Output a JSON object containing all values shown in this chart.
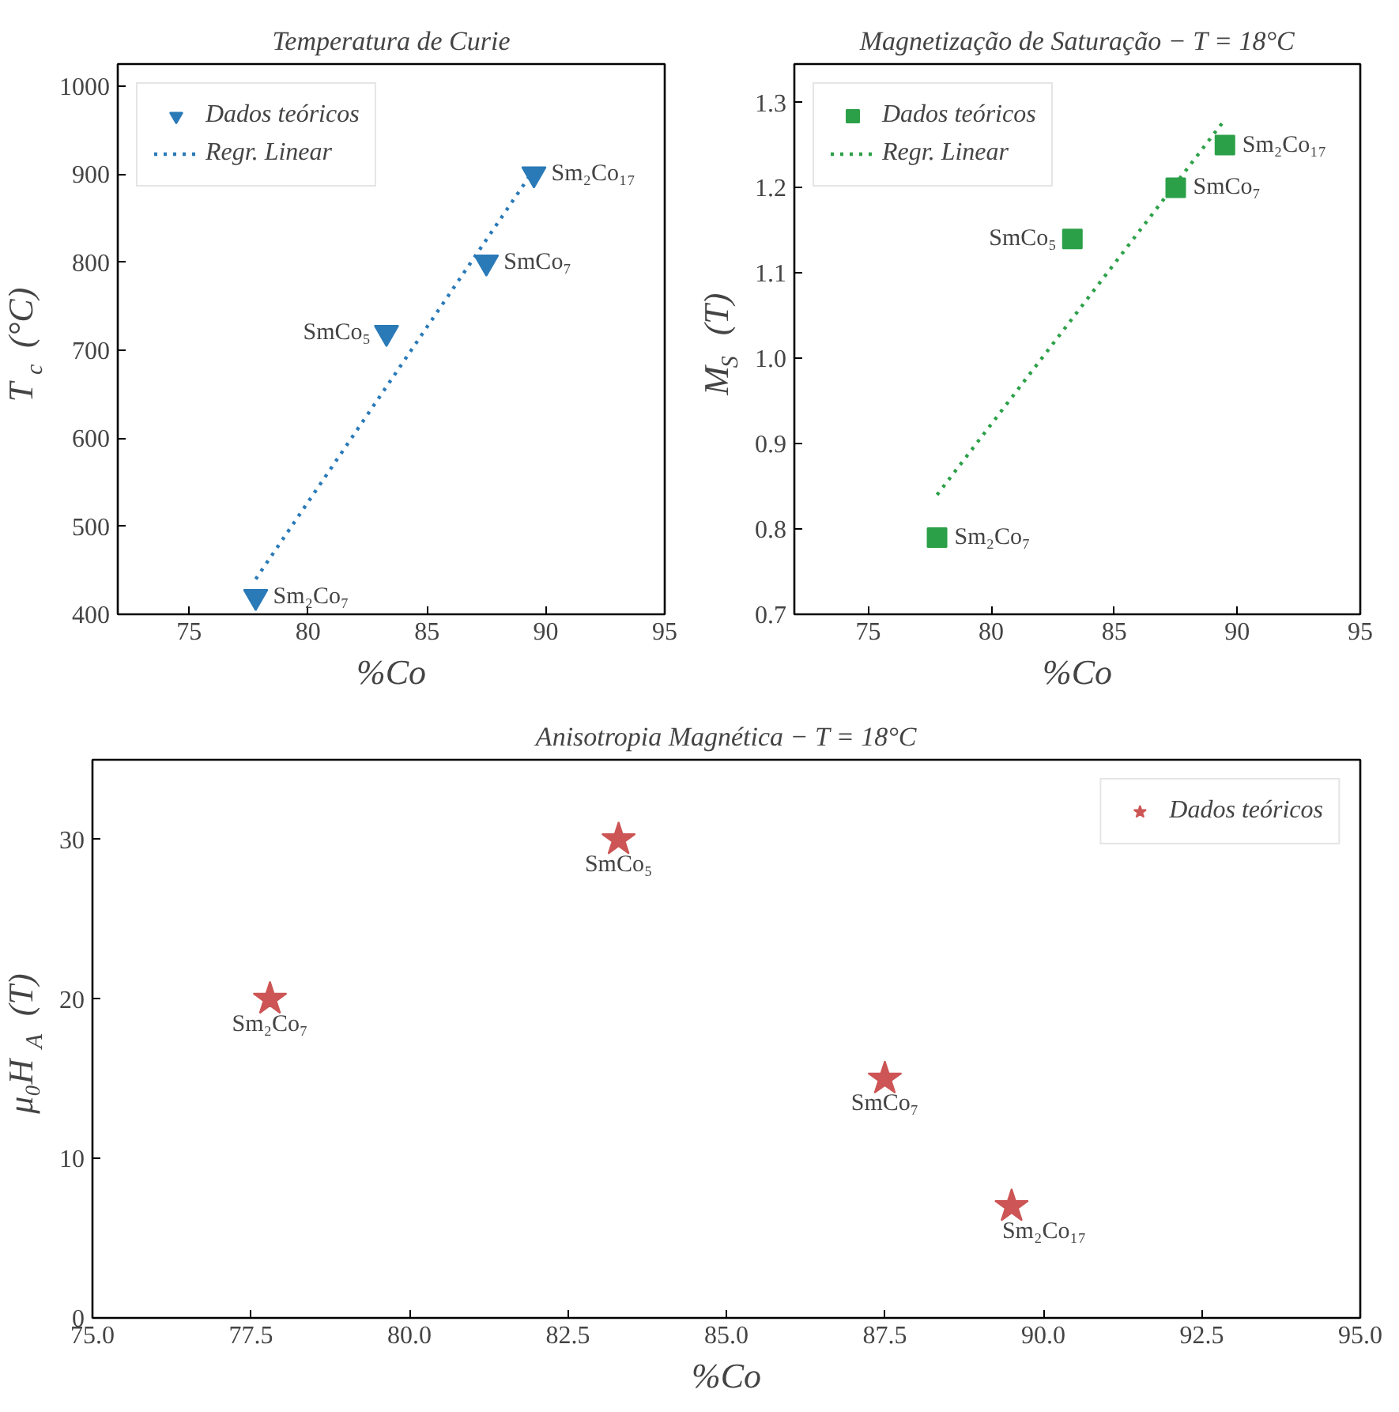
{
  "chart_data": [
    {
      "type": "scatter",
      "title": "Temperatura de Curie",
      "xlabel": "%Co",
      "ylabel": "T$_{c}$ (°C)",
      "xlim": [
        72,
        95
      ],
      "xticks": [
        75,
        80,
        85,
        90,
        95
      ],
      "ylim": [
        400,
        1025
      ],
      "yticks": [
        400,
        500,
        600,
        700,
        800,
        900,
        1000
      ],
      "legend": "top left",
      "grid": false,
      "series": [
        {
          "name": "Dados teóricos",
          "marker": "triangle",
          "color": "#2a7ab8",
          "x": [
            77.8,
            83.3,
            87.5,
            89.5
          ],
          "values": [
            420,
            720,
            800,
            900
          ]
        },
        {
          "name": "Regr. Linear",
          "type": "line",
          "line_style": "dotted",
          "color": "#2a7ab8",
          "x": [
            77.8,
            89.5
          ],
          "values": [
            440,
            905
          ]
        }
      ],
      "annotations": [
        {
          "text": "Sm₂Co₇",
          "x": 77.8,
          "y": 420
        },
        {
          "text": "SmCo₅",
          "x": 83.3,
          "y": 720
        },
        {
          "text": "SmCo₇",
          "x": 87.5,
          "y": 800
        },
        {
          "text": "Sm₂Co₁₇",
          "x": 89.5,
          "y": 900
        }
      ]
    },
    {
      "type": "scatter",
      "title": "Magnetização de Saturação − T = 18°C",
      "xlabel": "%Co",
      "ylabel": "M$_{S}$ (T)",
      "xlim": [
        72,
        95
      ],
      "xticks": [
        75,
        80,
        85,
        90,
        95
      ],
      "ylim": [
        0.7,
        1.345
      ],
      "yticks": [
        0.7,
        0.8,
        0.9,
        {
          "value": 1.0,
          "label": "1.0"
        },
        1.1,
        1.2,
        1.3
      ],
      "legend": "top left",
      "grid": false,
      "series": [
        {
          "name": "Dados teóricos",
          "marker": "square",
          "color": "#2ca048",
          "x": [
            77.8,
            83.3,
            87.5,
            89.5
          ],
          "values": [
            0.79,
            1.14,
            1.2,
            1.25
          ]
        },
        {
          "name": "Regr. Linear",
          "type": "line",
          "line_style": "dotted",
          "color": "#2ca048",
          "x": [
            77.8,
            89.5
          ],
          "values": [
            0.84,
            1.28
          ]
        }
      ],
      "annotations": [
        {
          "text": "Sm₂Co₇",
          "x": 77.8,
          "y": 0.79
        },
        {
          "text": "SmCo₅",
          "x": 83.3,
          "y": 1.14
        },
        {
          "text": "SmCo₇",
          "x": 87.5,
          "y": 1.2
        },
        {
          "text": "Sm₂Co₁₇",
          "x": 89.5,
          "y": 1.25
        }
      ]
    },
    {
      "type": "scatter",
      "title": "Anisotropia Magnética − T = 18°C",
      "xlabel": "%Co",
      "ylabel": "μ₀H$_{A}$ (T)",
      "xlim": [
        75,
        95
      ],
      "xticks": [
        {
          "value": 75,
          "label": "75.0"
        },
        {
          "value": 77.5,
          "label": "77.5"
        },
        {
          "value": 80,
          "label": "80.0"
        },
        {
          "value": 82.5,
          "label": "82.5"
        },
        {
          "value": 85,
          "label": "85.0"
        },
        {
          "value": 87.5,
          "label": "87.5"
        },
        {
          "value": 90,
          "label": "90.0"
        },
        {
          "value": 92.5,
          "label": "92.5"
        },
        {
          "value": 95,
          "label": "95.0"
        }
      ],
      "ylim": [
        0,
        35
      ],
      "yticks": [
        0,
        10,
        20,
        30
      ],
      "legend": "top right",
      "grid": false,
      "series": [
        {
          "name": "Dados teóricos",
          "marker": "star",
          "color": "#cd5555",
          "x": [
            77.8,
            83.3,
            87.5,
            89.5
          ],
          "values": [
            20,
            30,
            15,
            7
          ]
        }
      ],
      "annotations": [
        {
          "text": "Sm₂Co₇",
          "x": 77.8,
          "y": 20
        },
        {
          "text": "SmCo₅",
          "x": 83.3,
          "y": 30
        },
        {
          "text": "SmCo₇",
          "x": 87.5,
          "y": 15
        },
        {
          "text": "Sm₂Co₁₇",
          "x": 89.5,
          "y": 7
        }
      ]
    }
  ]
}
